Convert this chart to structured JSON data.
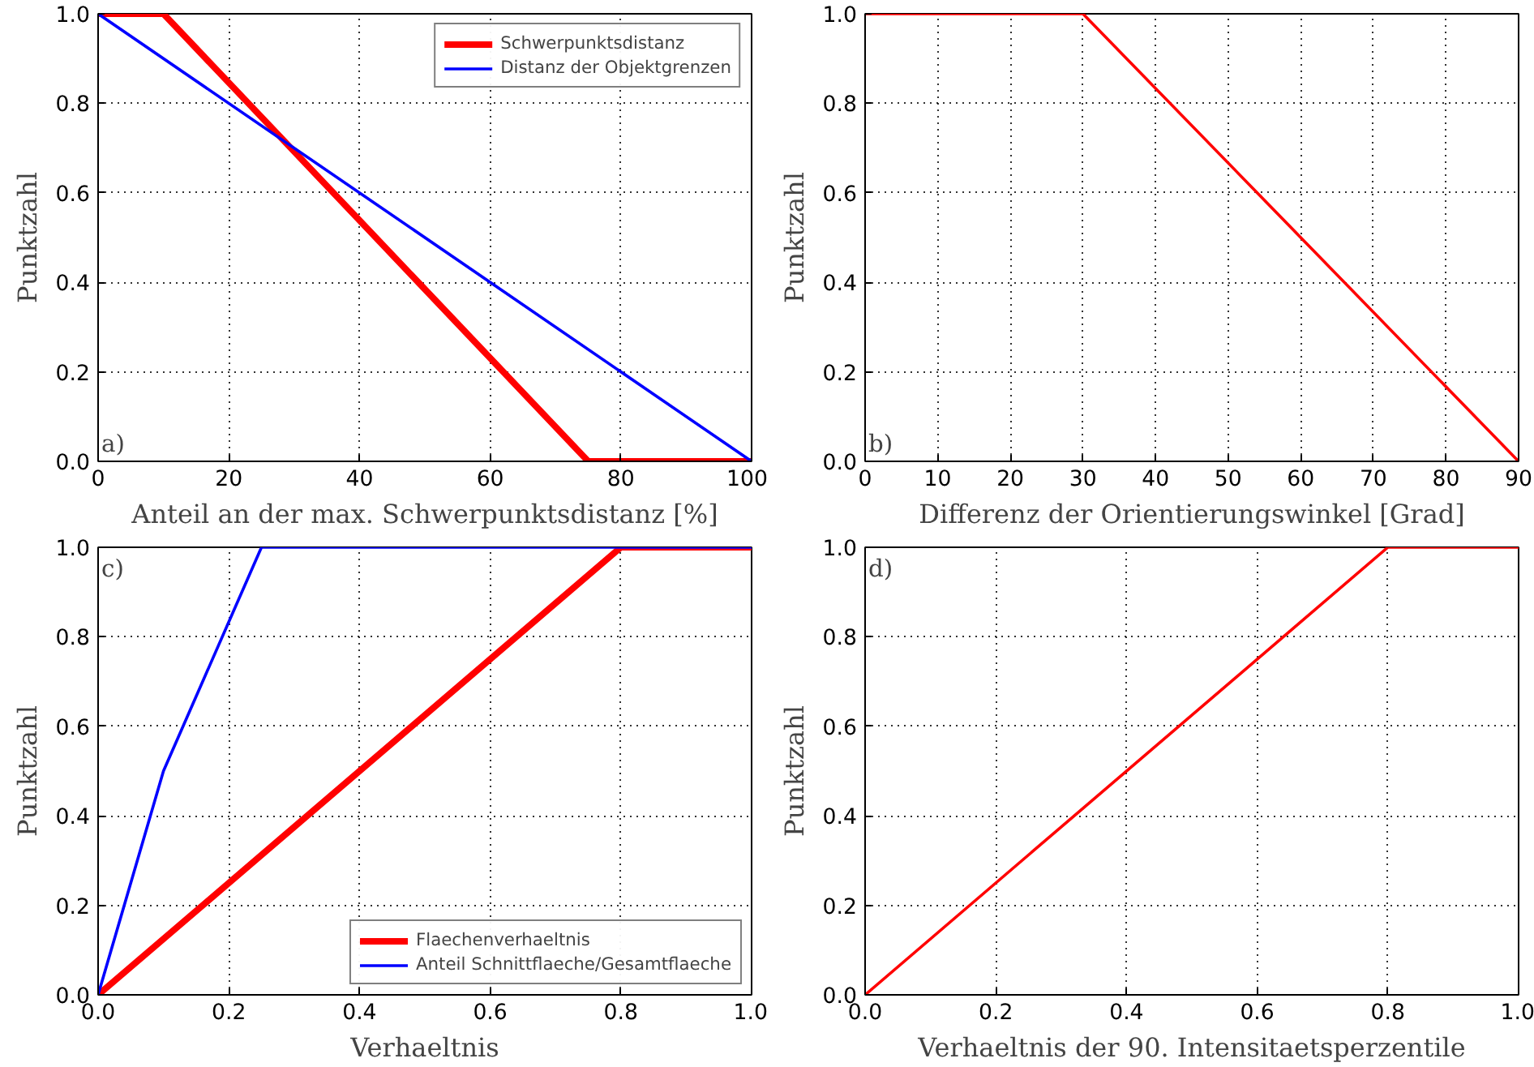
{
  "chart_data": [
    {
      "type": "line",
      "xlabel": "Anteil an der max. Schwerpunktsdistanz [%]",
      "ylabel": "Punktzahl",
      "annotations": [
        "a)"
      ],
      "xlim": [
        0,
        100
      ],
      "xticks": [
        0,
        20,
        40,
        60,
        80,
        100
      ],
      "ylim": [
        0,
        1
      ],
      "yticks": [
        {
          "value": 0,
          "label": "0.0"
        },
        {
          "value": 0.2,
          "label": "0.2"
        },
        {
          "value": 0.4,
          "label": "0.4"
        },
        {
          "value": 0.6,
          "label": "0.6"
        },
        {
          "value": 0.8,
          "label": "0.8"
        },
        {
          "value": 1,
          "label": "1.0"
        }
      ],
      "grid": true,
      "legend": "top right",
      "line_style": "solid",
      "marker": "none",
      "series": [
        {
          "name": "Schwerpunktsdistanz",
          "color": "#ff0000",
          "x": [
            0,
            10,
            75,
            100
          ],
          "values": [
            1,
            1,
            0,
            0
          ]
        },
        {
          "name": "Distanz der Objektgrenzen",
          "color": "#0000ff",
          "x": [
            0,
            100
          ],
          "values": [
            1,
            0
          ]
        }
      ]
    },
    {
      "type": "line",
      "xlabel": "Differenz der Orientierungswinkel [Grad]",
      "ylabel": "Punktzahl",
      "annotations": [
        "b)"
      ],
      "xlim": [
        0,
        90
      ],
      "xticks": [
        0,
        10,
        20,
        30,
        40,
        50,
        60,
        70,
        80,
        90
      ],
      "ylim": [
        0,
        1
      ],
      "yticks": [
        {
          "value": 0,
          "label": "0.0"
        },
        {
          "value": 0.2,
          "label": "0.2"
        },
        {
          "value": 0.4,
          "label": "0.4"
        },
        {
          "value": 0.6,
          "label": "0.6"
        },
        {
          "value": 0.8,
          "label": "0.8"
        },
        {
          "value": 1,
          "label": "1.0"
        }
      ],
      "grid": true,
      "legend": false,
      "line_style": "solid",
      "marker": "none",
      "series": [
        {
          "color": "#ff0000",
          "x": [
            0,
            30,
            90
          ],
          "values": [
            1,
            1,
            0
          ]
        }
      ]
    },
    {
      "type": "line",
      "xlabel": "Verhaeltnis",
      "ylabel": "Punktzahl",
      "annotations": [
        "c)"
      ],
      "xlim": [
        0,
        1
      ],
      "xticks": [
        {
          "value": 0,
          "label": "0.0"
        },
        {
          "value": 0.2,
          "label": "0.2"
        },
        {
          "value": 0.4,
          "label": "0.4"
        },
        {
          "value": 0.6,
          "label": "0.6"
        },
        {
          "value": 0.8,
          "label": "0.8"
        },
        {
          "value": 1,
          "label": "1.0"
        }
      ],
      "ylim": [
        0,
        1
      ],
      "yticks": [
        {
          "value": 0,
          "label": "0.0"
        },
        {
          "value": 0.2,
          "label": "0.2"
        },
        {
          "value": 0.4,
          "label": "0.4"
        },
        {
          "value": 0.6,
          "label": "0.6"
        },
        {
          "value": 0.8,
          "label": "0.8"
        },
        {
          "value": 1,
          "label": "1.0"
        }
      ],
      "grid": true,
      "legend": "bottom right",
      "line_style": "solid",
      "marker": "none",
      "series": [
        {
          "name": "Flaechenverhaeltnis",
          "color": "#ff0000",
          "x": [
            0,
            0.8,
            1
          ],
          "values": [
            0,
            1,
            1
          ]
        },
        {
          "name": "Anteil Schnittflaeche/Gesamtflaeche",
          "color": "#0000ff",
          "x": [
            0,
            0.1,
            0.25,
            1
          ],
          "values": [
            0,
            0.5,
            1,
            1
          ]
        }
      ]
    },
    {
      "type": "line",
      "xlabel": "Verhaeltnis der 90. Intensitaetsperzentile",
      "ylabel": "Punktzahl",
      "annotations": [
        "d)"
      ],
      "xlim": [
        0,
        1
      ],
      "xticks": [
        {
          "value": 0,
          "label": "0.0"
        },
        {
          "value": 0.2,
          "label": "0.2"
        },
        {
          "value": 0.4,
          "label": "0.4"
        },
        {
          "value": 0.6,
          "label": "0.6"
        },
        {
          "value": 0.8,
          "label": "0.8"
        },
        {
          "value": 1,
          "label": "1.0"
        }
      ],
      "ylim": [
        0,
        1
      ],
      "yticks": [
        {
          "value": 0,
          "label": "0.0"
        },
        {
          "value": 0.2,
          "label": "0.2"
        },
        {
          "value": 0.4,
          "label": "0.4"
        },
        {
          "value": 0.6,
          "label": "0.6"
        },
        {
          "value": 0.8,
          "label": "0.8"
        },
        {
          "value": 1,
          "label": "1.0"
        }
      ],
      "grid": true,
      "legend": false,
      "line_style": "solid",
      "marker": "none",
      "series": [
        {
          "color": "#ff0000",
          "x": [
            0,
            0.8,
            1
          ],
          "values": [
            0,
            1,
            1
          ]
        }
      ]
    }
  ]
}
